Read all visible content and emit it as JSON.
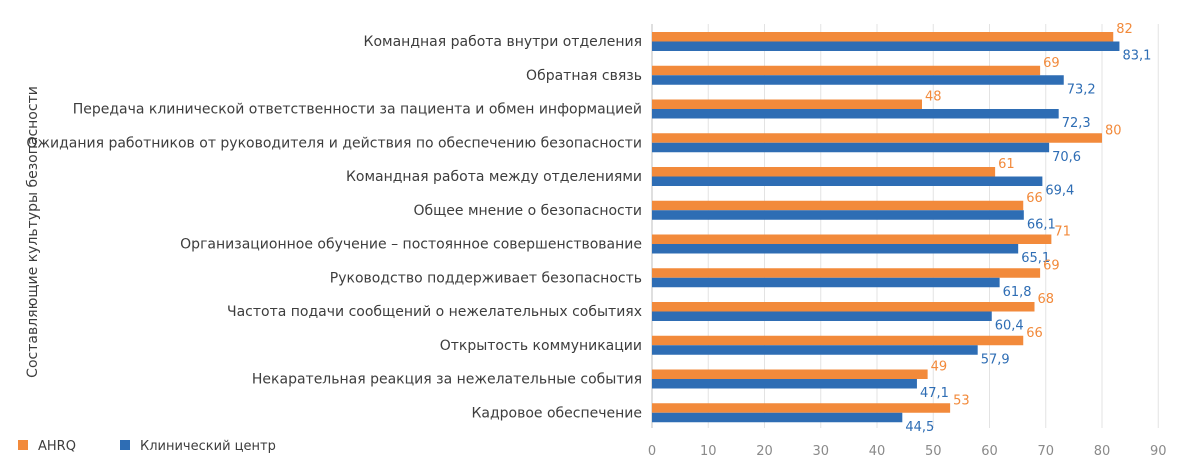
{
  "chart_data": {
    "type": "bar",
    "orientation": "horizontal",
    "title": "",
    "xlabel": "",
    "ylabel": "Составляющие культуры безопасности",
    "xlim": [
      0,
      90
    ],
    "xticks": [
      "0",
      "10",
      "20",
      "30",
      "40",
      "50",
      "60",
      "70",
      "80",
      "90"
    ],
    "grid": "vertical",
    "legend_position": "bottom-left",
    "categories": [
      "Командная работа внутри отделения",
      "Обратная связь",
      "Передача клинической ответственности за пациента и обмен информацией",
      "Ожидания работников от руководителя и действия по обеспечению безопасности",
      "Командная работа между отделениями",
      "Общее мнение о безопасности",
      "Организационное обучение – постоянное совершенствование",
      "Руководство поддерживает безопасность",
      "Частота подачи сообщений о нежелательных событиях",
      "Открытость коммуникации",
      "Некарательная реакция за нежелательные события",
      "Кадровое обеспечение"
    ],
    "series": [
      {
        "name": "AHRQ",
        "color": "#f28a3b",
        "values": [
          82,
          69,
          48,
          80,
          61,
          66,
          71,
          69,
          68,
          66,
          49,
          53
        ],
        "labels": [
          "82",
          "69",
          "48",
          "80",
          "61",
          "66",
          "71",
          "69",
          "68",
          "66",
          "49",
          "53"
        ]
      },
      {
        "name": "Клинический центр",
        "color": "#2e6db4",
        "values": [
          83.1,
          73.2,
          72.3,
          70.6,
          69.4,
          66.1,
          65.1,
          61.8,
          60.4,
          57.9,
          47.1,
          44.5
        ],
        "labels": [
          "83,1",
          "73,2",
          "72,3",
          "70,6",
          "69,4",
          "66,1",
          "65,1",
          "61,8",
          "60,4",
          "57,9",
          "47,1",
          "44,5"
        ]
      }
    ]
  }
}
